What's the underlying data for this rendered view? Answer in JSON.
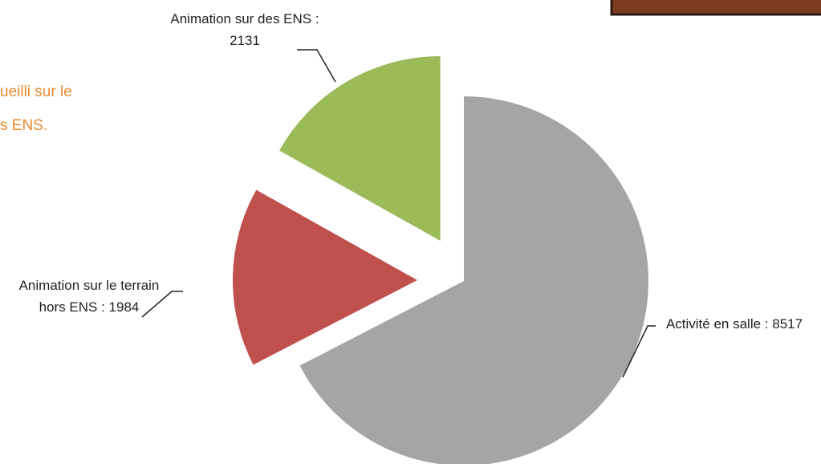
{
  "annotations": [
    "ueilli sur le",
    "s ENS."
  ],
  "chart_data": {
    "type": "pie",
    "categories": [
      "Activité en salle :",
      "Animation sur le terrain hors ENS :",
      "Animation sur des ENS :"
    ],
    "values": [
      8517,
      1984,
      2131
    ],
    "colors": [
      "#a5a5a5",
      "#c0504d",
      "#9bbb59"
    ]
  }
}
